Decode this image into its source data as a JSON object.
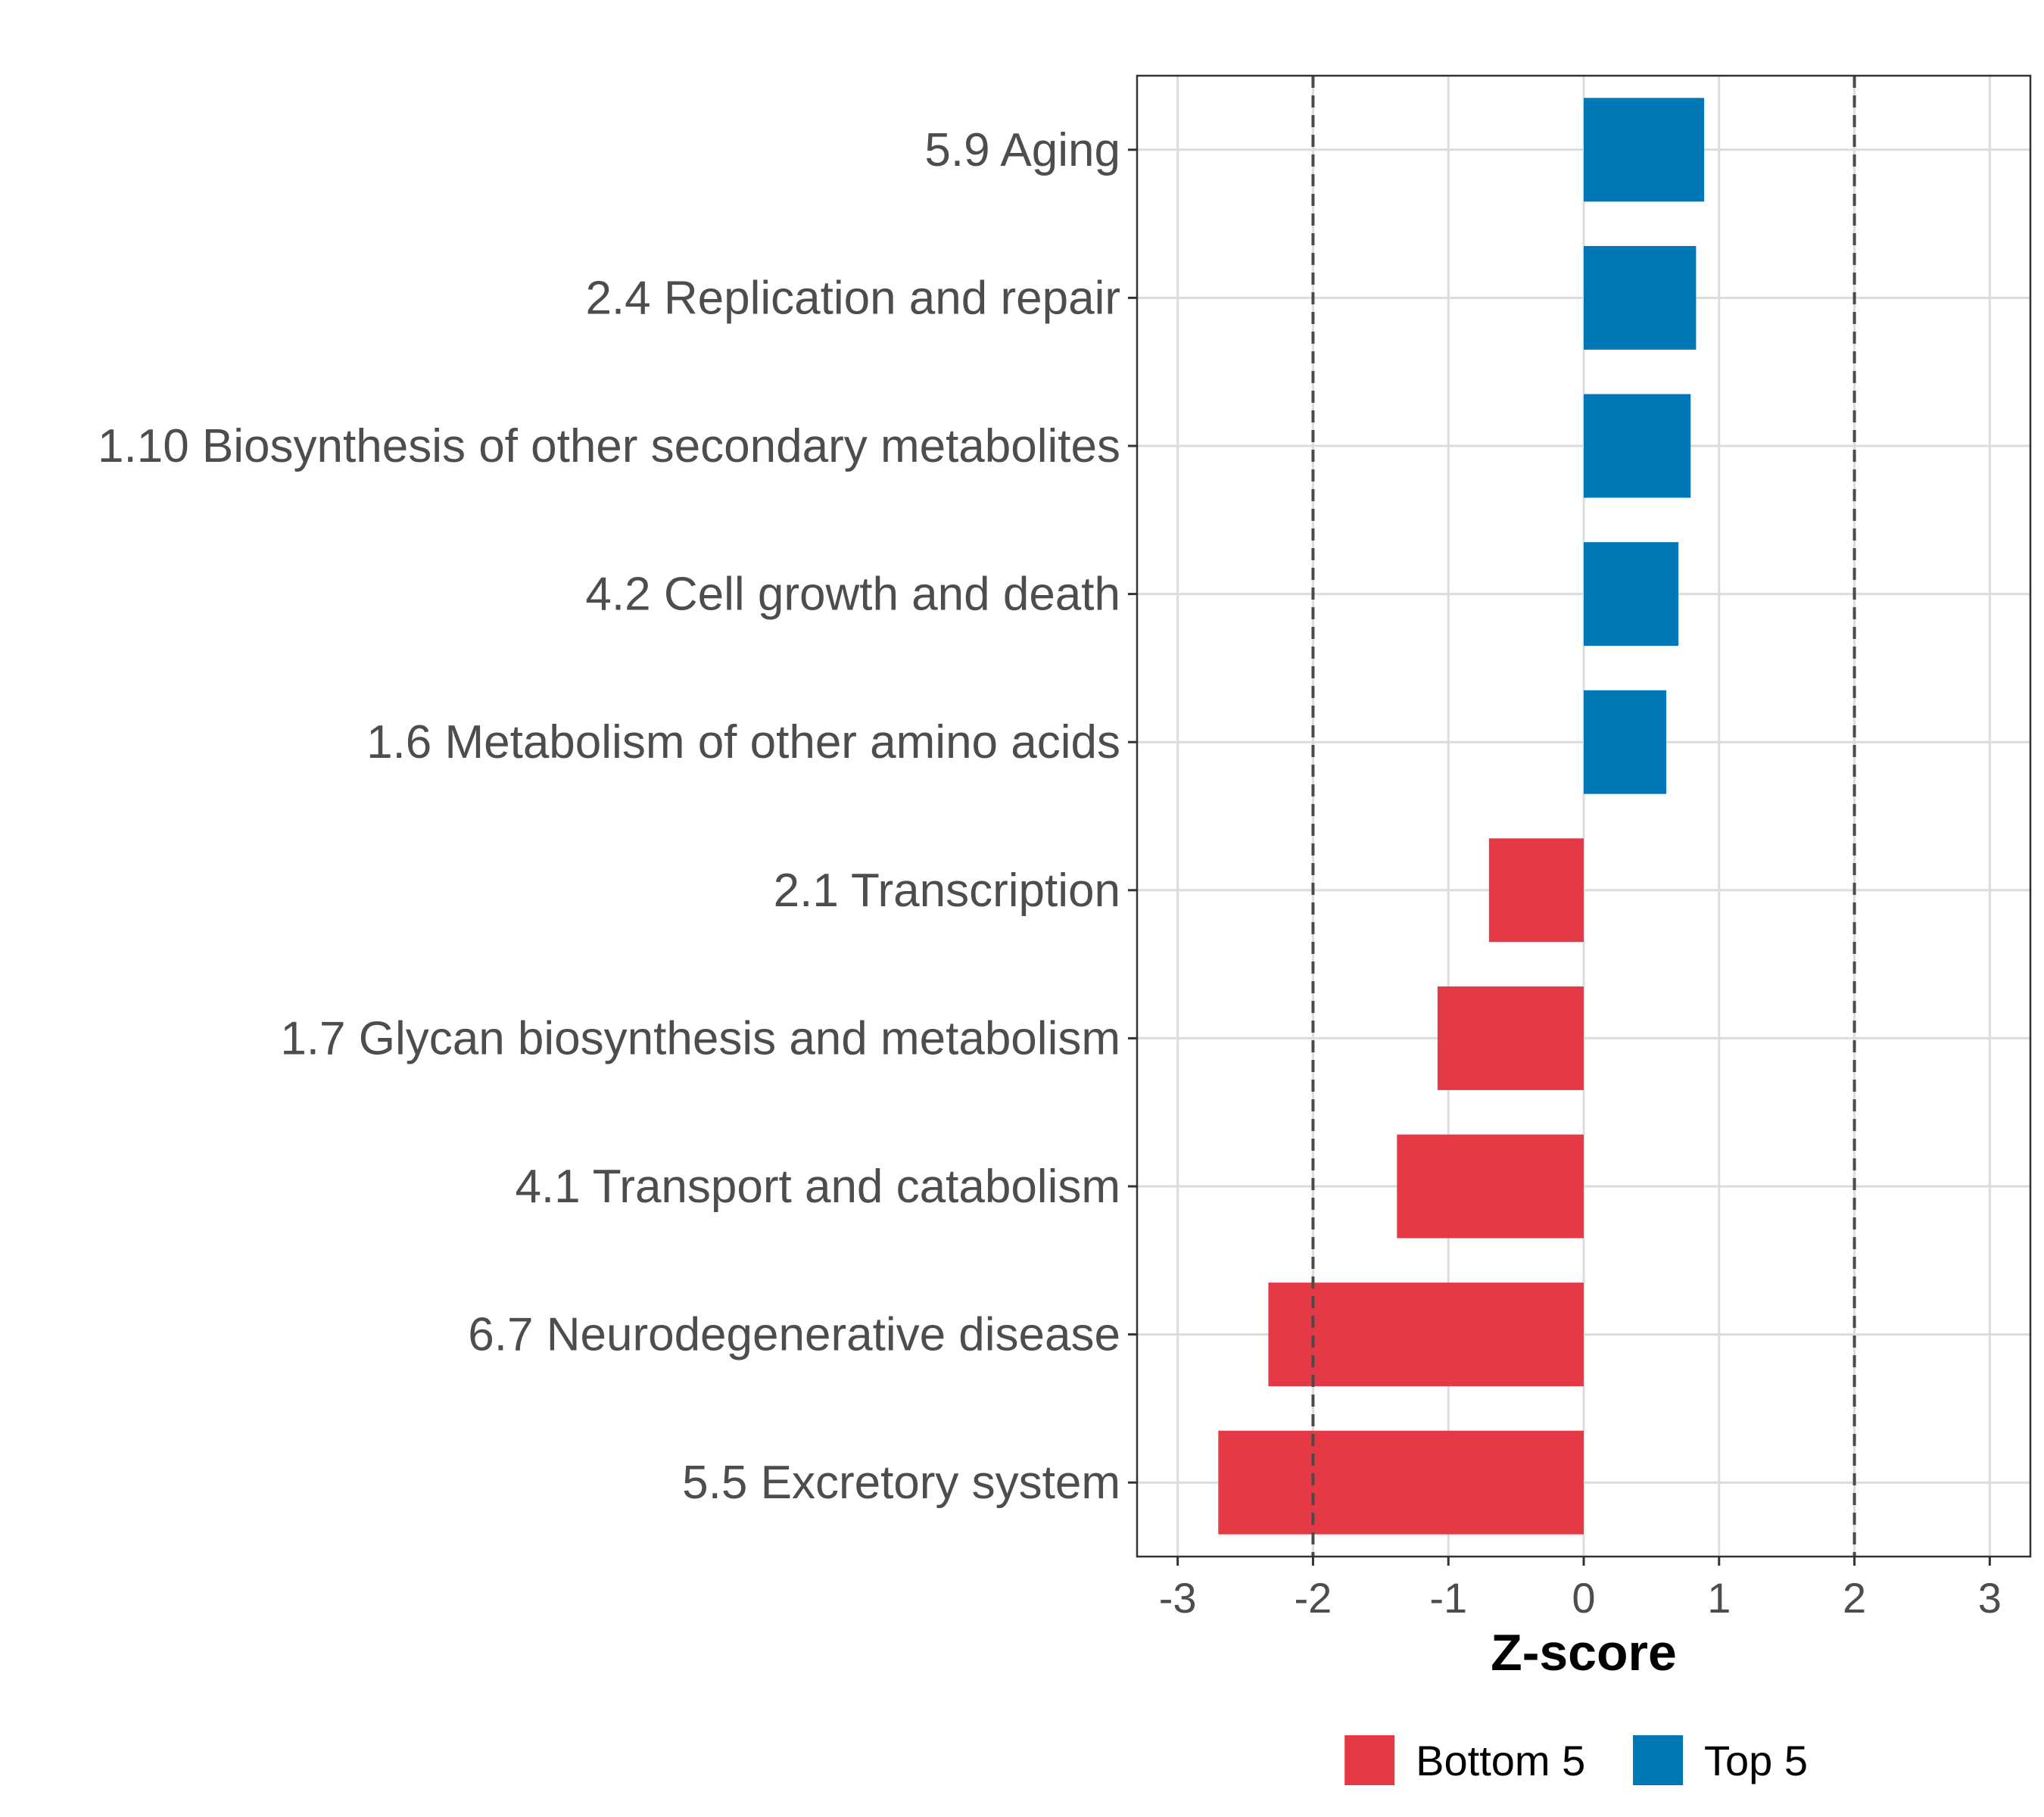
{
  "chart_data": {
    "type": "bar",
    "orientation": "horizontal",
    "title": "",
    "xlabel": "Z-score",
    "ylabel": "",
    "xlim": [
      -3.3,
      3.3
    ],
    "x_ticks": [
      -3,
      -2,
      -1,
      0,
      1,
      2,
      3
    ],
    "reference_lines": [
      -2,
      2
    ],
    "grid": true,
    "legend_position": "bottom",
    "categories": [
      "5.9 Aging",
      "2.4 Replication and repair",
      "1.10 Biosynthesis of other secondary metabolites",
      "4.2 Cell growth and death",
      "1.6 Metabolism of other amino acids",
      "2.1 Transcription",
      "1.7 Glycan biosynthesis and metabolism",
      "4.1 Transport and catabolism",
      "6.7 Neurodegenerative disease",
      "5.5 Excretory system"
    ],
    "values": [
      0.89,
      0.83,
      0.79,
      0.7,
      0.61,
      -0.7,
      -1.08,
      -1.38,
      -2.33,
      -2.7
    ],
    "groups": [
      "Top 5",
      "Top 5",
      "Top 5",
      "Top 5",
      "Top 5",
      "Bottom 5",
      "Bottom 5",
      "Bottom 5",
      "Bottom 5",
      "Bottom 5"
    ],
    "legend": [
      {
        "name": "Bottom 5",
        "color": "#e63946"
      },
      {
        "name": "Top 5",
        "color": "#0077b6"
      }
    ]
  }
}
